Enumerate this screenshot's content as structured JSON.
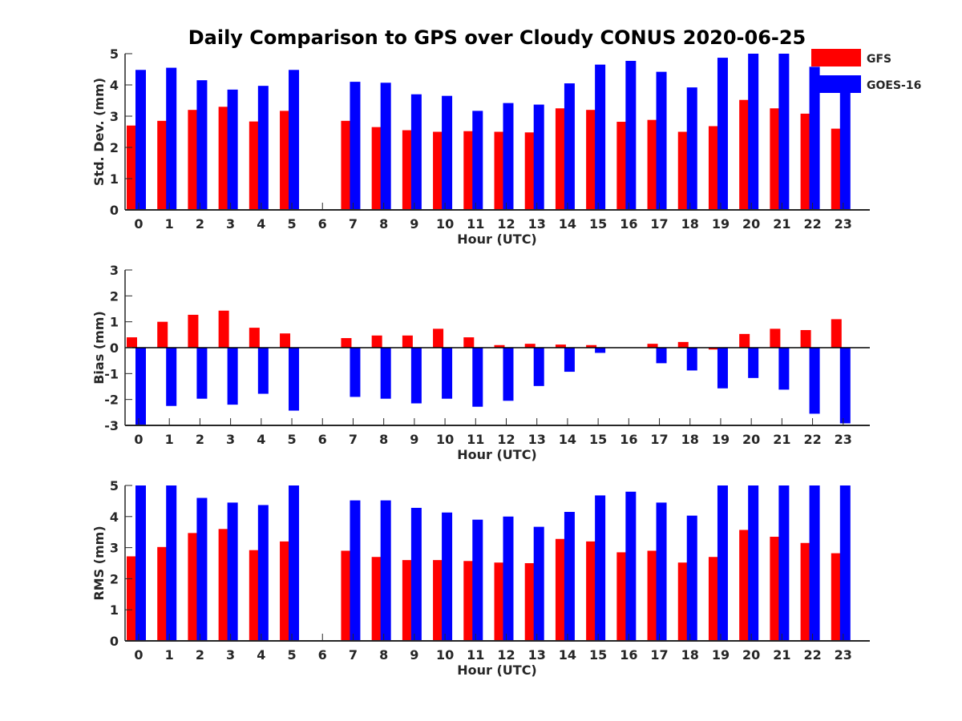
{
  "title": "Daily Comparison to GPS over Cloudy CONUS 2020-06-25",
  "legend": {
    "placement": "top-right",
    "entries": [
      {
        "name": "GFS",
        "color": "#ff0000"
      },
      {
        "name": "GOES-16",
        "color": "#0000ff"
      }
    ]
  },
  "chart_data": [
    {
      "type": "bar",
      "xlabel": "Hour (UTC)",
      "ylabel": "Std. Dev. (mm)",
      "ylim": [
        0,
        5
      ],
      "yticks": [
        0,
        1,
        2,
        3,
        4,
        5
      ],
      "categories": [
        "0",
        "1",
        "2",
        "3",
        "4",
        "5",
        "6",
        "7",
        "8",
        "9",
        "10",
        "11",
        "12",
        "13",
        "14",
        "15",
        "16",
        "17",
        "18",
        "19",
        "20",
        "21",
        "22",
        "23"
      ],
      "series": [
        {
          "name": "GFS",
          "color": "#ff0000",
          "values": [
            2.7,
            2.85,
            3.2,
            3.3,
            2.83,
            3.17,
            null,
            2.85,
            2.65,
            2.55,
            2.5,
            2.52,
            2.5,
            2.48,
            3.25,
            3.2,
            2.82,
            2.88,
            2.5,
            2.68,
            3.52,
            3.25,
            3.08,
            2.6
          ]
        },
        {
          "name": "GOES-16",
          "color": "#0000ff",
          "values": [
            4.48,
            4.55,
            4.15,
            3.85,
            3.97,
            4.48,
            null,
            4.1,
            4.07,
            3.7,
            3.65,
            3.17,
            3.42,
            3.37,
            4.05,
            4.65,
            4.77,
            4.42,
            3.92,
            4.87,
            5.0,
            5.0,
            4.58,
            3.75
          ]
        }
      ]
    },
    {
      "type": "bar",
      "xlabel": "Hour (UTC)",
      "ylabel": "Bias (mm)",
      "ylim": [
        -3,
        3
      ],
      "yticks": [
        -3,
        -2,
        -1,
        0,
        1,
        2,
        3
      ],
      "categories": [
        "0",
        "1",
        "2",
        "3",
        "4",
        "5",
        "6",
        "7",
        "8",
        "9",
        "10",
        "11",
        "12",
        "13",
        "14",
        "15",
        "16",
        "17",
        "18",
        "19",
        "20",
        "21",
        "22",
        "23"
      ],
      "series": [
        {
          "name": "GFS",
          "color": "#ff0000",
          "values": [
            0.4,
            1.0,
            1.27,
            1.43,
            0.77,
            0.55,
            null,
            0.37,
            0.47,
            0.47,
            0.73,
            0.4,
            0.1,
            0.15,
            0.12,
            0.1,
            null,
            0.15,
            0.22,
            -0.07,
            0.53,
            0.73,
            0.68,
            1.1
          ]
        },
        {
          "name": "GOES-16",
          "color": "#0000ff",
          "values": [
            -3.0,
            -2.25,
            -1.97,
            -2.2,
            -1.78,
            -2.43,
            null,
            -1.9,
            -1.97,
            -2.15,
            -1.97,
            -2.28,
            -2.05,
            -1.48,
            -0.93,
            -0.2,
            null,
            -0.6,
            -0.88,
            -1.57,
            -1.17,
            -1.62,
            -2.55,
            -2.92
          ]
        }
      ]
    },
    {
      "type": "bar",
      "xlabel": "Hour (UTC)",
      "ylabel": "RMS (mm)",
      "ylim": [
        0,
        5
      ],
      "yticks": [
        0,
        1,
        2,
        3,
        4,
        5
      ],
      "categories": [
        "0",
        "1",
        "2",
        "3",
        "4",
        "5",
        "6",
        "7",
        "8",
        "9",
        "10",
        "11",
        "12",
        "13",
        "14",
        "15",
        "16",
        "17",
        "18",
        "19",
        "20",
        "21",
        "22",
        "23"
      ],
      "series": [
        {
          "name": "GFS",
          "color": "#ff0000",
          "values": [
            2.72,
            3.02,
            3.47,
            3.6,
            2.92,
            3.2,
            null,
            2.9,
            2.7,
            2.6,
            2.6,
            2.57,
            2.52,
            2.5,
            3.28,
            3.2,
            2.85,
            2.9,
            2.52,
            2.7,
            3.57,
            3.35,
            3.15,
            2.82
          ]
        },
        {
          "name": "GOES-16",
          "color": "#0000ff",
          "values": [
            5.0,
            5.0,
            4.6,
            4.45,
            4.37,
            5.0,
            null,
            4.52,
            4.52,
            4.28,
            4.13,
            3.9,
            4.0,
            3.67,
            4.15,
            4.68,
            4.8,
            4.45,
            4.03,
            5.0,
            5.0,
            5.0,
            5.0,
            5.0
          ]
        }
      ]
    }
  ]
}
